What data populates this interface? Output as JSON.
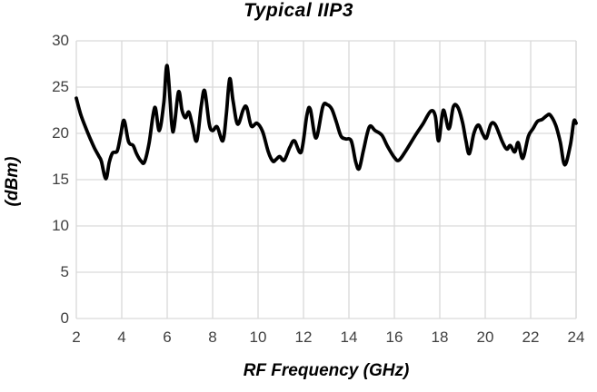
{
  "chart_data": {
    "type": "line",
    "title": "Typical IIP3",
    "xlabel": "RF Frequency (GHz)",
    "ylabel": "(dBm)",
    "xlim": [
      2,
      24
    ],
    "ylim": [
      0,
      30
    ],
    "x_ticks": [
      2,
      4,
      6,
      8,
      10,
      12,
      14,
      16,
      18,
      20,
      22,
      24
    ],
    "y_ticks": [
      0,
      5,
      10,
      15,
      20,
      25,
      30
    ],
    "grid": true,
    "legend_position": "none",
    "series": [
      {
        "name": "Typical IIP3",
        "color": "#000000",
        "points": [
          [
            2.0,
            23.8
          ],
          [
            2.2,
            22.0
          ],
          [
            2.4,
            20.7
          ],
          [
            2.6,
            19.5
          ],
          [
            2.8,
            18.4
          ],
          [
            3.0,
            17.5
          ],
          [
            3.1,
            17.0
          ],
          [
            3.3,
            15.1
          ],
          [
            3.45,
            16.9
          ],
          [
            3.6,
            17.9
          ],
          [
            3.8,
            18.1
          ],
          [
            3.95,
            19.8
          ],
          [
            4.1,
            21.4
          ],
          [
            4.3,
            19.1
          ],
          [
            4.5,
            18.7
          ],
          [
            4.65,
            17.8
          ],
          [
            4.85,
            17.0
          ],
          [
            5.0,
            16.9
          ],
          [
            5.2,
            18.9
          ],
          [
            5.45,
            22.8
          ],
          [
            5.65,
            20.3
          ],
          [
            5.85,
            23.3
          ],
          [
            6.0,
            27.3
          ],
          [
            6.2,
            21.0
          ],
          [
            6.3,
            20.6
          ],
          [
            6.5,
            24.5
          ],
          [
            6.65,
            22.5
          ],
          [
            6.8,
            21.7
          ],
          [
            6.95,
            22.3
          ],
          [
            7.1,
            21.0
          ],
          [
            7.3,
            19.2
          ],
          [
            7.5,
            23.0
          ],
          [
            7.65,
            24.6
          ],
          [
            7.85,
            21.0
          ],
          [
            8.0,
            20.3
          ],
          [
            8.2,
            20.7
          ],
          [
            8.45,
            19.2
          ],
          [
            8.6,
            22.0
          ],
          [
            8.75,
            25.9
          ],
          [
            8.9,
            23.5
          ],
          [
            9.1,
            21.0
          ],
          [
            9.35,
            22.6
          ],
          [
            9.5,
            22.8
          ],
          [
            9.7,
            20.8
          ],
          [
            9.95,
            21.1
          ],
          [
            10.2,
            20.2
          ],
          [
            10.45,
            18.0
          ],
          [
            10.65,
            17.0
          ],
          [
            10.8,
            17.2
          ],
          [
            10.95,
            17.5
          ],
          [
            11.15,
            17.1
          ],
          [
            11.4,
            18.5
          ],
          [
            11.6,
            19.2
          ],
          [
            11.9,
            18.0
          ],
          [
            12.15,
            22.0
          ],
          [
            12.3,
            22.6
          ],
          [
            12.55,
            19.5
          ],
          [
            12.85,
            22.9
          ],
          [
            13.05,
            23.1
          ],
          [
            13.25,
            22.6
          ],
          [
            13.45,
            21.2
          ],
          [
            13.65,
            19.7
          ],
          [
            13.85,
            19.4
          ],
          [
            14.1,
            19.2
          ],
          [
            14.3,
            16.9
          ],
          [
            14.45,
            16.2
          ],
          [
            14.65,
            18.3
          ],
          [
            14.9,
            20.7
          ],
          [
            15.15,
            20.3
          ],
          [
            15.45,
            19.8
          ],
          [
            15.7,
            18.6
          ],
          [
            16.0,
            17.4
          ],
          [
            16.2,
            17.1
          ],
          [
            16.5,
            18.1
          ],
          [
            16.9,
            19.7
          ],
          [
            17.25,
            21.0
          ],
          [
            17.6,
            22.4
          ],
          [
            17.8,
            21.9
          ],
          [
            17.95,
            19.2
          ],
          [
            18.15,
            22.5
          ],
          [
            18.4,
            20.5
          ],
          [
            18.6,
            22.9
          ],
          [
            18.8,
            22.8
          ],
          [
            19.0,
            21.2
          ],
          [
            19.15,
            19.2
          ],
          [
            19.3,
            17.8
          ],
          [
            19.5,
            20.0
          ],
          [
            19.7,
            20.9
          ],
          [
            19.9,
            19.9
          ],
          [
            20.05,
            19.5
          ],
          [
            20.25,
            21.0
          ],
          [
            20.45,
            20.9
          ],
          [
            20.75,
            19.1
          ],
          [
            20.95,
            18.3
          ],
          [
            21.1,
            18.7
          ],
          [
            21.3,
            18.0
          ],
          [
            21.45,
            19.0
          ],
          [
            21.65,
            17.3
          ],
          [
            21.9,
            19.7
          ],
          [
            22.1,
            20.5
          ],
          [
            22.3,
            21.3
          ],
          [
            22.5,
            21.5
          ],
          [
            22.7,
            21.9
          ],
          [
            22.85,
            22.0
          ],
          [
            23.1,
            20.9
          ],
          [
            23.3,
            19.1
          ],
          [
            23.5,
            16.6
          ],
          [
            23.75,
            18.8
          ],
          [
            23.9,
            21.3
          ],
          [
            24.0,
            21.1
          ]
        ]
      }
    ]
  },
  "colors": {
    "line": "#000000",
    "grid": "#d9d9d9",
    "tick_label": "#404040",
    "title": "#000000",
    "background": "#ffffff"
  }
}
